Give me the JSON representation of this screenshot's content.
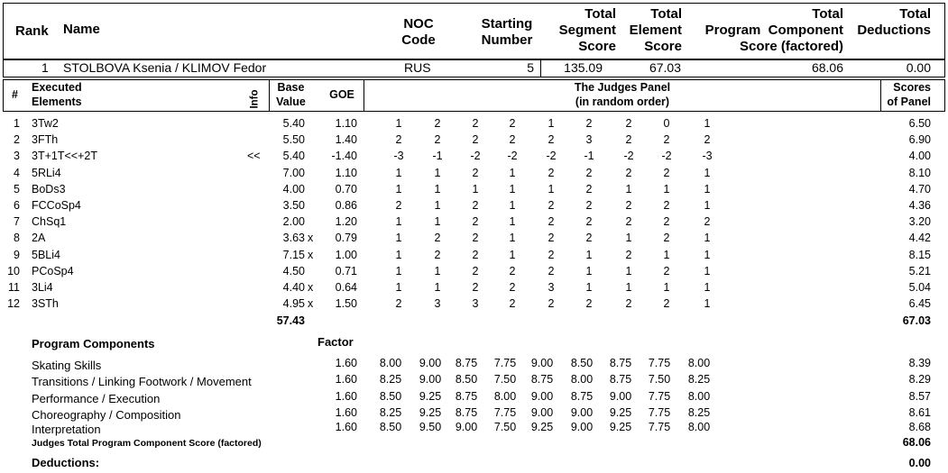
{
  "header": {
    "rank": "Rank",
    "name": "Name",
    "noc_line1": "NOC",
    "noc_line2": "Code",
    "start_line1": "Starting",
    "start_line2": "Number",
    "tss_line1": "Total",
    "tss_line2": "Segment",
    "tss_line3": "Score",
    "tes_line1": "Total",
    "tes_line2": "Element",
    "tes_line3": "Score",
    "pcs_line1": "Total",
    "pcs_line2": "Program  Component",
    "pcs_line3": "Score (factored)",
    "ded_line1": "Total",
    "ded_line2": "Deductions"
  },
  "skater": {
    "rank": "1",
    "name": "STOLBOVA Ksenia / KLIMOV Fedor",
    "noc": "RUS",
    "start": "5",
    "tss": "135.09",
    "tes": "67.03",
    "pcs": "68.06",
    "ded": "0.00"
  },
  "elements_header": {
    "num": "#",
    "exec_line1": "Executed",
    "exec_line2": "Elements",
    "info": "Info",
    "base_line1": "Base",
    "base_line2": "Value",
    "goe": "GOE",
    "judges_line1": "The Judges Panel",
    "judges_line2": "(in random order)",
    "scores_line1": "Scores",
    "scores_line2": "of Panel"
  },
  "elements": [
    {
      "num": "1",
      "name": "3Tw2",
      "info": "",
      "base": "5.40",
      "x": "",
      "goe": "1.10",
      "judges": [
        "1",
        "2",
        "2",
        "2",
        "1",
        "2",
        "2",
        "0",
        "1"
      ],
      "score": "6.50"
    },
    {
      "num": "2",
      "name": "3FTh",
      "info": "",
      "base": "5.50",
      "x": "",
      "goe": "1.40",
      "judges": [
        "2",
        "2",
        "2",
        "2",
        "2",
        "3",
        "2",
        "2",
        "2"
      ],
      "score": "6.90"
    },
    {
      "num": "3",
      "name": "3T+1T<<+2T",
      "info": "<<",
      "base": "5.40",
      "x": "",
      "goe": "-1.40",
      "judges": [
        "-3",
        "-1",
        "-2",
        "-2",
        "-2",
        "-1",
        "-2",
        "-2",
        "-3"
      ],
      "score": "4.00"
    },
    {
      "num": "4",
      "name": "5RLi4",
      "info": "",
      "base": "7.00",
      "x": "",
      "goe": "1.10",
      "judges": [
        "1",
        "1",
        "2",
        "1",
        "2",
        "2",
        "2",
        "2",
        "1"
      ],
      "score": "8.10"
    },
    {
      "num": "5",
      "name": "BoDs3",
      "info": "",
      "base": "4.00",
      "x": "",
      "goe": "0.70",
      "judges": [
        "1",
        "1",
        "1",
        "1",
        "1",
        "2",
        "1",
        "1",
        "1"
      ],
      "score": "4.70"
    },
    {
      "num": "6",
      "name": "FCCoSp4",
      "info": "",
      "base": "3.50",
      "x": "",
      "goe": "0.86",
      "judges": [
        "2",
        "1",
        "2",
        "1",
        "2",
        "2",
        "2",
        "2",
        "1"
      ],
      "score": "4.36"
    },
    {
      "num": "7",
      "name": "ChSq1",
      "info": "",
      "base": "2.00",
      "x": "",
      "goe": "1.20",
      "judges": [
        "1",
        "1",
        "2",
        "1",
        "2",
        "2",
        "2",
        "2",
        "2"
      ],
      "score": "3.20"
    },
    {
      "num": "8",
      "name": "2A",
      "info": "",
      "base": "3.63",
      "x": "x",
      "goe": "0.79",
      "judges": [
        "1",
        "2",
        "2",
        "1",
        "2",
        "2",
        "1",
        "2",
        "1"
      ],
      "score": "4.42"
    },
    {
      "num": "9",
      "name": "5BLi4",
      "info": "",
      "base": "7.15",
      "x": "x",
      "goe": "1.00",
      "judges": [
        "1",
        "2",
        "2",
        "1",
        "2",
        "1",
        "2",
        "1",
        "1"
      ],
      "score": "8.15"
    },
    {
      "num": "10",
      "name": "PCoSp4",
      "info": "",
      "base": "4.50",
      "x": "",
      "goe": "0.71",
      "judges": [
        "1",
        "1",
        "2",
        "2",
        "2",
        "1",
        "1",
        "2",
        "1"
      ],
      "score": "5.21"
    },
    {
      "num": "11",
      "name": "3Li4",
      "info": "",
      "base": "4.40",
      "x": "x",
      "goe": "0.64",
      "judges": [
        "1",
        "1",
        "2",
        "2",
        "3",
        "1",
        "1",
        "1",
        "1"
      ],
      "score": "5.04"
    },
    {
      "num": "12",
      "name": "3STh",
      "info": "",
      "base": "4.95",
      "x": "x",
      "goe": "1.50",
      "judges": [
        "2",
        "3",
        "3",
        "2",
        "2",
        "2",
        "2",
        "2",
        "1"
      ],
      "score": "6.45"
    }
  ],
  "elements_total": {
    "base": "57.43",
    "score": "67.03"
  },
  "pc": {
    "title": "Program Components",
    "factor_label": "Factor",
    "rows": [
      {
        "name": "Skating Skills",
        "factor": "1.60",
        "judges": [
          "8.00",
          "9.00",
          "8.75",
          "7.75",
          "9.00",
          "8.50",
          "8.75",
          "7.75",
          "8.00"
        ],
        "score": "8.39"
      },
      {
        "name": "Transitions / Linking Footwork / Movement",
        "factor": "1.60",
        "judges": [
          "8.25",
          "9.00",
          "8.50",
          "7.50",
          "8.75",
          "8.00",
          "8.75",
          "7.50",
          "8.25"
        ],
        "score": "8.29"
      },
      {
        "name": "Performance / Execution",
        "factor": "1.60",
        "judges": [
          "8.50",
          "9.25",
          "8.75",
          "8.00",
          "9.00",
          "8.75",
          "9.00",
          "7.75",
          "8.00"
        ],
        "score": "8.57"
      },
      {
        "name": "Choreography / Composition",
        "factor": "1.60",
        "judges": [
          "8.25",
          "9.25",
          "8.75",
          "7.75",
          "9.00",
          "9.00",
          "9.25",
          "7.75",
          "8.25"
        ],
        "score": "8.61"
      },
      {
        "name": "Interpretation",
        "factor": "1.60",
        "judges": [
          "8.50",
          "9.50",
          "9.00",
          "7.50",
          "9.25",
          "9.00",
          "9.25",
          "7.75",
          "8.00"
        ],
        "score": "8.68"
      }
    ],
    "total_label": "Judges Total Program Component Score (factored)",
    "total": "68.06"
  },
  "deductions": {
    "label": "Deductions:",
    "value": "0.00"
  }
}
